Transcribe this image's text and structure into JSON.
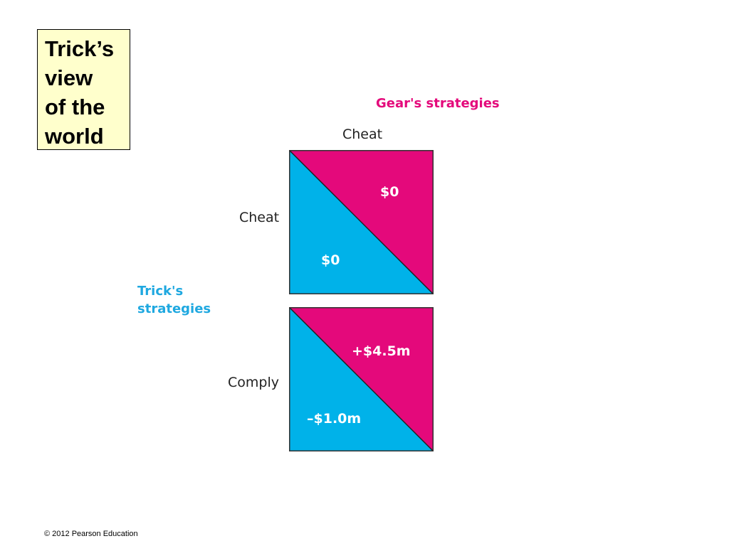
{
  "title": {
    "lines": [
      "Trick’s",
      "view",
      "of the",
      "world"
    ]
  },
  "gear": {
    "title": "Gear's strategies",
    "column": "Cheat"
  },
  "trick": {
    "title_lines": [
      "Trick's",
      "strategies"
    ],
    "rows": [
      "Cheat",
      "Comply"
    ]
  },
  "cells": [
    {
      "gear_payoff": "$0",
      "trick_payoff": "$0"
    },
    {
      "gear_payoff": "+$4.5m",
      "trick_payoff": "–$1.0m"
    }
  ],
  "colors": {
    "gear": "#e4097b",
    "trick": "#00b2e9",
    "title_box": "#ffffcc"
  },
  "footer": {
    "copyright": "© 2012 Pearson Education"
  }
}
